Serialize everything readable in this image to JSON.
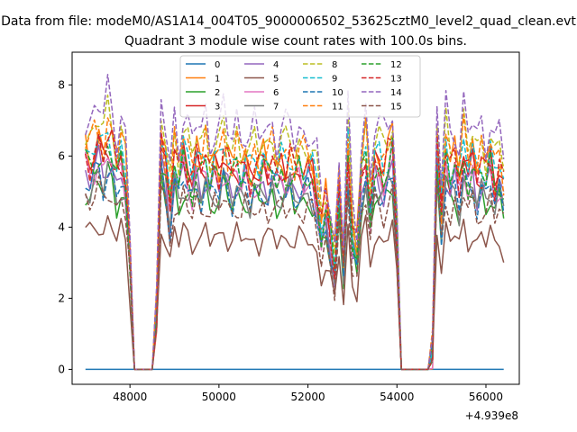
{
  "figure": {
    "suptitle": "Data from file: modeM0/AS1A14_004T05_9000006502_53625cztM0_level2_quad_clean.evt",
    "title": "Quadrant 3 module wise count rates with 100.0s bins.",
    "x_offset_label": "+4.939e8"
  },
  "chart_data": {
    "type": "line",
    "title": "Quadrant 3 module wise count rates with 100.0s bins.",
    "xlabel": "",
    "ylabel": "",
    "x_offset": 493900000,
    "x_start": 47000,
    "x_step": 100,
    "n_points": 95,
    "xlim": [
      46700,
      56750
    ],
    "ylim": [
      -0.42,
      8.92
    ],
    "xticks": [
      48000,
      50000,
      52000,
      54000,
      56000
    ],
    "yticks": [
      0,
      2,
      4,
      6,
      8
    ],
    "grid": false,
    "legend": {
      "location": "top-center",
      "columns": 4
    },
    "base_profile": [
      5.5,
      5.3,
      5.6,
      5.8,
      5.4,
      5.9,
      5.7,
      5.1,
      5.5,
      5.0,
      3.0,
      0,
      0,
      0,
      0,
      0,
      1.5,
      5.8,
      5.2,
      4.2,
      5.5,
      5.0,
      5.6,
      5.2,
      4.9,
      5.4,
      5.1,
      5.5,
      5.0,
      5.3,
      5.1,
      5.6,
      5.2,
      5.0,
      5.4,
      5.1,
      5.3,
      4.9,
      5.2,
      5.0,
      5.3,
      5.1,
      5.4,
      5.0,
      5.2,
      5.1,
      5.3,
      5.0,
      5.2,
      5.1,
      5.2,
      5.0,
      4.5,
      3.6,
      4.2,
      3.5,
      2.6,
      4.7,
      2.8,
      5.6,
      3.4,
      3.0,
      5.0,
      5.6,
      4.2,
      5.3,
      5.2,
      5.0,
      5.4,
      5.8,
      3.4,
      0,
      0,
      0,
      0,
      0,
      0,
      0,
      0.5,
      5.8,
      4.0,
      5.6,
      5.1,
      5.4,
      4.8,
      5.7,
      5.1,
      5.4,
      4.9,
      5.3,
      5.0,
      5.5,
      4.8,
      5.2,
      4.7
    ],
    "series": [
      {
        "name": "0",
        "color": "#1f77b4",
        "dash": "solid",
        "scale": 0,
        "phase": 0
      },
      {
        "name": "1",
        "color": "#ff7f0e",
        "dash": "solid",
        "scale": 1.13,
        "phase": 1.1
      },
      {
        "name": "2",
        "color": "#2ca02c",
        "dash": "solid",
        "scale": 0.92,
        "phase": 2.3
      },
      {
        "name": "3",
        "color": "#d62728",
        "dash": "solid",
        "scale": 1.07,
        "phase": 3.7
      },
      {
        "name": "4",
        "color": "#9467bd",
        "dash": "solid",
        "scale": 1.0,
        "phase": 4.2
      },
      {
        "name": "5",
        "color": "#8c564b",
        "dash": "solid",
        "scale": 0.71,
        "phase": 5.9
      },
      {
        "name": "6",
        "color": "#e377c2",
        "dash": "solid",
        "scale": 1.02,
        "phase": 0.6
      },
      {
        "name": "7",
        "color": "#7f7f7f",
        "dash": "solid",
        "scale": 0.95,
        "phase": 1.9
      },
      {
        "name": "8",
        "color": "#bcbd22",
        "dash": "dashed",
        "scale": 1.22,
        "phase": 2.8
      },
      {
        "name": "9",
        "color": "#17becf",
        "dash": "dashed",
        "scale": 1.12,
        "phase": 3.3
      },
      {
        "name": "10",
        "color": "#1f77b4",
        "dash": "dashed",
        "scale": 0.96,
        "phase": 4.8
      },
      {
        "name": "11",
        "color": "#ff7f0e",
        "dash": "dashed",
        "scale": 1.17,
        "phase": 5.4
      },
      {
        "name": "12",
        "color": "#2ca02c",
        "dash": "dashed",
        "scale": 1.05,
        "phase": 0.3
      },
      {
        "name": "13",
        "color": "#d62728",
        "dash": "dashed",
        "scale": 1.1,
        "phase": 1.5
      },
      {
        "name": "14",
        "color": "#9467bd",
        "dash": "dashed",
        "scale": 1.3,
        "phase": 2.6
      },
      {
        "name": "15",
        "color": "#8c564b",
        "dash": "dashed",
        "scale": 0.87,
        "phase": 3.9
      }
    ]
  }
}
